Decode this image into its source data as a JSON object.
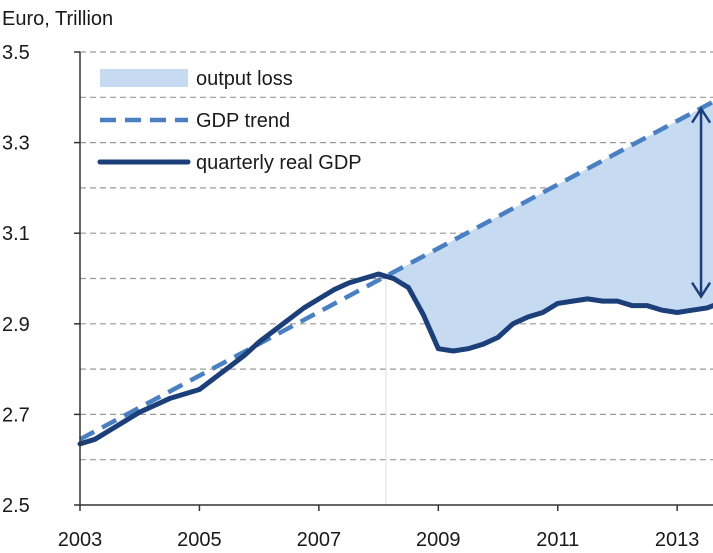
{
  "chart_data": {
    "type": "line",
    "y_unit_label": "Euro, Trillion",
    "xlim": [
      2003,
      2013.6
    ],
    "ylim": [
      2.5,
      3.5
    ],
    "x_ticks": [
      2003,
      2005,
      2007,
      2009,
      2011,
      2013
    ],
    "y_ticks": [
      2.5,
      2.7,
      2.9,
      3.1,
      3.3,
      3.5
    ],
    "grid": {
      "horizontal": "dashed",
      "minor_step": 0.1
    },
    "legend_placement": "top-left",
    "legend": [
      {
        "key": "loss",
        "label": "output loss"
      },
      {
        "key": "trend",
        "label": "GDP trend"
      },
      {
        "key": "gdp",
        "label": "quarterly real GDP"
      }
    ],
    "colors": {
      "loss_fill": "#c6dbf1",
      "trend": "#4a7fc1",
      "gdp": "#1c3f7a",
      "grid": "#9a9a9a",
      "axis": "#333333"
    },
    "series": [
      {
        "key": "trend",
        "name": "GDP trend",
        "style": "dashed",
        "x": [
          2003.0,
          2013.6
        ],
        "y": [
          2.645,
          3.39
        ]
      },
      {
        "key": "gdp",
        "name": "quarterly real GDP",
        "style": "solid",
        "x": [
          2003.0,
          2003.25,
          2003.5,
          2003.75,
          2004.0,
          2004.25,
          2004.5,
          2004.75,
          2005.0,
          2005.25,
          2005.5,
          2005.75,
          2006.0,
          2006.25,
          2006.5,
          2006.75,
          2007.0,
          2007.25,
          2007.5,
          2007.75,
          2008.0,
          2008.25,
          2008.5,
          2008.75,
          2009.0,
          2009.25,
          2009.5,
          2009.75,
          2010.0,
          2010.25,
          2010.5,
          2010.75,
          2011.0,
          2011.25,
          2011.5,
          2011.75,
          2012.0,
          2012.25,
          2012.5,
          2012.75,
          2013.0,
          2013.25,
          2013.5,
          2013.6
        ],
        "y": [
          2.635,
          2.645,
          2.665,
          2.685,
          2.705,
          2.72,
          2.735,
          2.745,
          2.755,
          2.78,
          2.805,
          2.83,
          2.86,
          2.885,
          2.91,
          2.935,
          2.955,
          2.975,
          2.99,
          3.0,
          3.01,
          3.0,
          2.98,
          2.92,
          2.845,
          2.84,
          2.845,
          2.855,
          2.87,
          2.9,
          2.915,
          2.925,
          2.945,
          2.95,
          2.955,
          2.95,
          2.95,
          2.94,
          2.94,
          2.93,
          2.925,
          2.93,
          2.935,
          2.94
        ]
      }
    ],
    "annotation": {
      "type": "double-arrow",
      "x": 2013.4,
      "y_from": 2.96,
      "y_to": 3.375
    }
  }
}
